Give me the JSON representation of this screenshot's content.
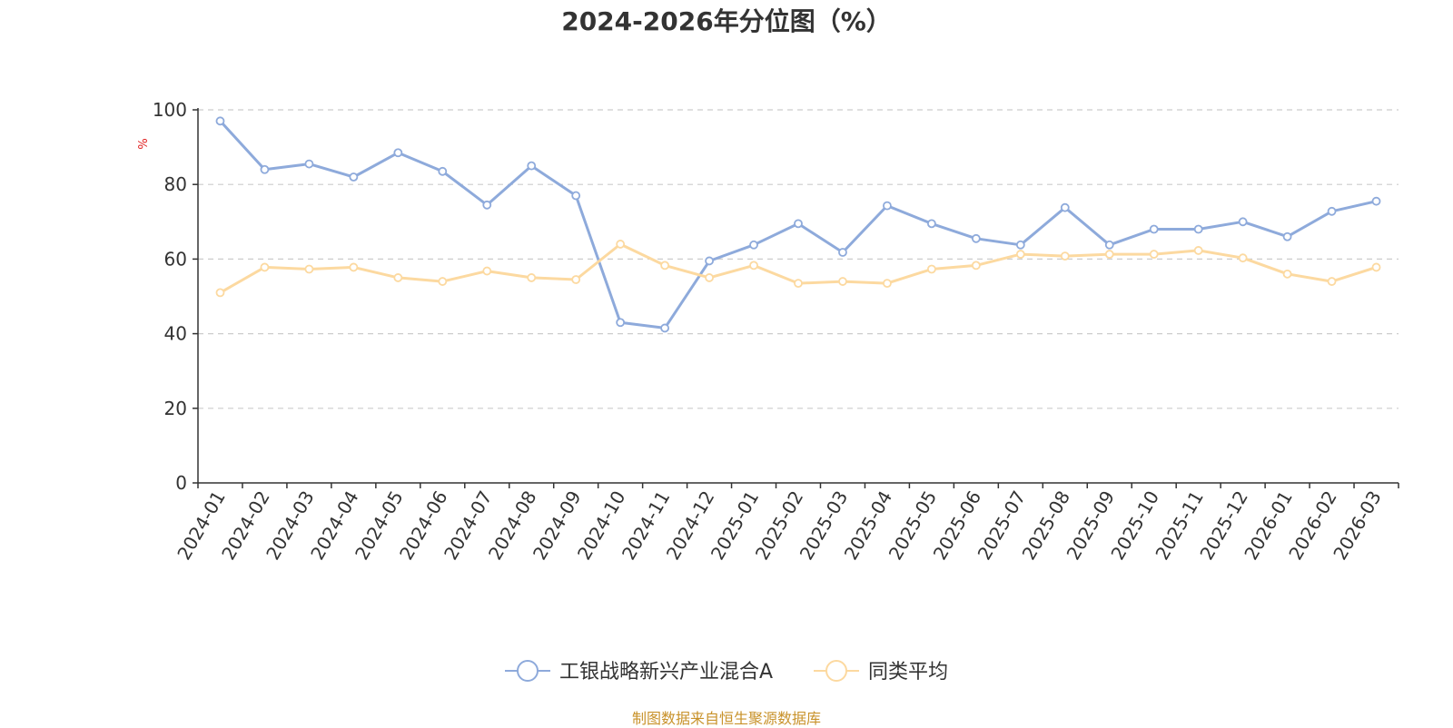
{
  "chart_data": {
    "type": "line",
    "title": "2024-2026年分位图（%）",
    "ylabel": "%",
    "xlabel": "",
    "ylim": [
      0,
      100
    ],
    "yticks": [
      0,
      20,
      40,
      60,
      80,
      100
    ],
    "grid": true,
    "legend_position": "bottom-center",
    "categories": [
      "2024-01",
      "2024-02",
      "2024-03",
      "2024-04",
      "2024-05",
      "2024-06",
      "2024-07",
      "2024-08",
      "2024-09",
      "2024-10",
      "2024-11",
      "2024-12",
      "2025-01",
      "2025-02",
      "2025-03",
      "2025-04",
      "2025-05",
      "2025-06",
      "2025-07",
      "2025-08",
      "2025-09",
      "2025-10",
      "2025-11",
      "2025-12",
      "2026-01",
      "2026-02",
      "2026-03"
    ],
    "series": [
      {
        "name": "工银战略新兴产业混合A",
        "color": "#8eaadb",
        "values": [
          97.0,
          84.0,
          85.5,
          82.0,
          88.5,
          83.5,
          74.5,
          85.0,
          77.0,
          43.0,
          41.5,
          59.5,
          63.8,
          69.5,
          61.8,
          74.3,
          69.5,
          65.5,
          63.8,
          73.8,
          63.8,
          68.0,
          68.0,
          70.0,
          66.0,
          72.8,
          75.5
        ]
      },
      {
        "name": "同类平均",
        "color": "#fcd9a0",
        "values": [
          51.0,
          57.8,
          57.3,
          57.8,
          55.0,
          54.0,
          56.8,
          55.0,
          54.5,
          64.0,
          58.3,
          55.0,
          58.3,
          53.5,
          54.0,
          53.5,
          57.3,
          58.3,
          61.3,
          60.8,
          61.3,
          61.3,
          62.3,
          60.3,
          56.0,
          54.0,
          57.8
        ]
      }
    ]
  },
  "source_text": "制图数据来自恒生聚源数据库",
  "colors": {
    "axis": "#333333",
    "grid": "#cccccc",
    "source": "#c8922a",
    "ylabel": "#e02020"
  }
}
